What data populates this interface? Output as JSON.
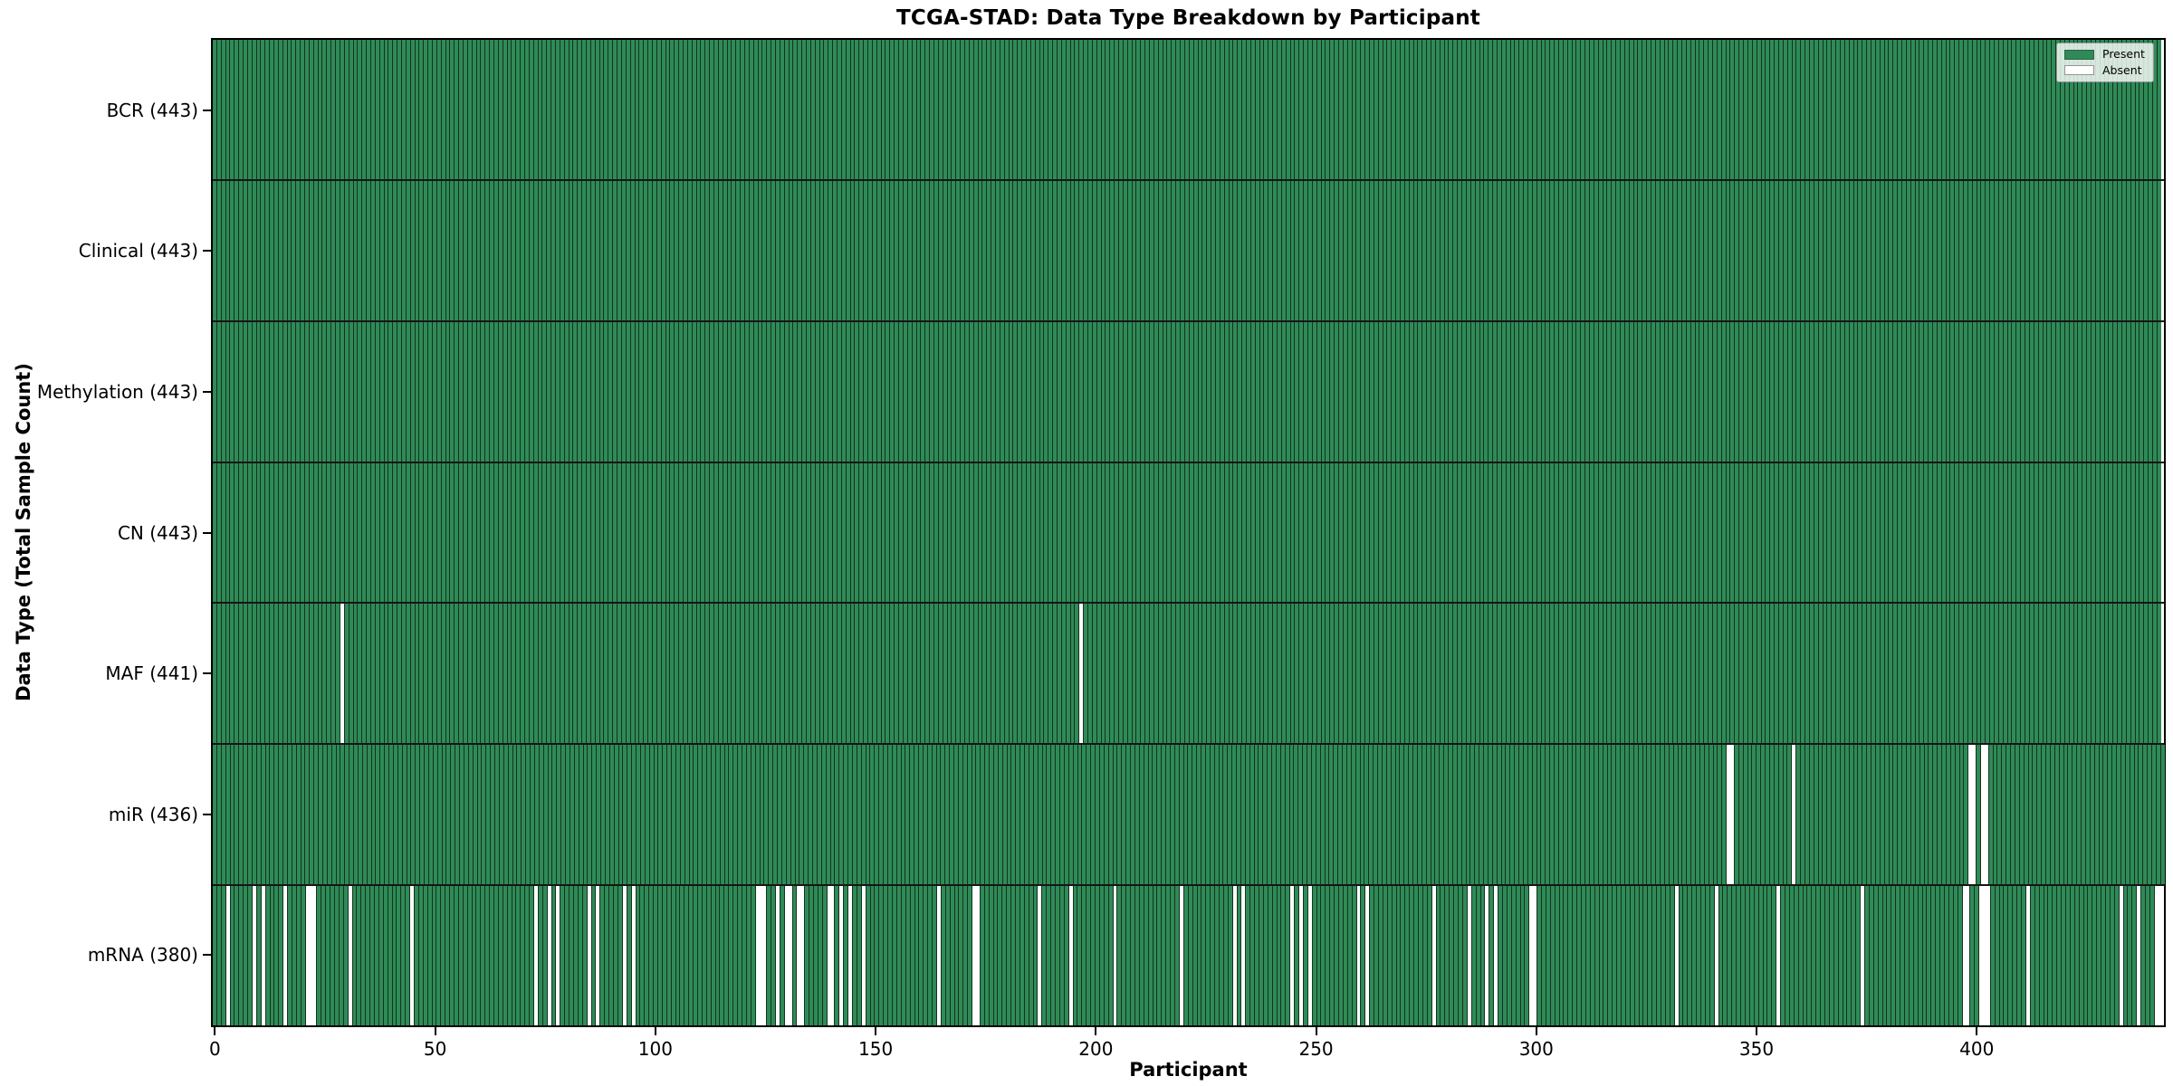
{
  "chart_data": {
    "type": "heatmap",
    "title": "TCGA-STAD: Data Type Breakdown by Participant",
    "xlabel": "Participant",
    "ylabel": "Data Type (Total Sample Count)",
    "n_participants": 443,
    "x_ticks": [
      0,
      50,
      100,
      150,
      200,
      250,
      300,
      350,
      400
    ],
    "grid": "off",
    "legend_position": "upper-right",
    "legend_entries": [
      {
        "label": "Present",
        "color": "#2e8b57"
      },
      {
        "label": "Absent",
        "color": "#ffffff"
      }
    ],
    "colors": {
      "present": "#2e8b57",
      "absent": "#ffffff",
      "bar_edge": "#16321f",
      "row_separator": "#161616",
      "spine": "#000000"
    },
    "rows": [
      {
        "label": "BCR (443)",
        "data_type": "BCR",
        "total": 443,
        "absent_participants": []
      },
      {
        "label": "Clinical (443)",
        "data_type": "Clinical",
        "total": 443,
        "absent_participants": []
      },
      {
        "label": "Methylation (443)",
        "data_type": "Methylation",
        "total": 443,
        "absent_participants": []
      },
      {
        "label": "CN (443)",
        "data_type": "CN",
        "total": 443,
        "absent_participants": []
      },
      {
        "label": "MAF (441)",
        "data_type": "MAF",
        "total": 441,
        "absent_participants": [
          29,
          197
        ]
      },
      {
        "label": "miR (436)",
        "data_type": "miR",
        "total": 436,
        "absent_participants": [
          343,
          344,
          358,
          398,
          399,
          401,
          402
        ]
      },
      {
        "label": "mRNA (380)",
        "data_type": "mRNA",
        "total": 380,
        "absent_participants": [
          3,
          9,
          11,
          16,
          21,
          22,
          23,
          31,
          45,
          73,
          76,
          78,
          85,
          87,
          93,
          95,
          123,
          124,
          125,
          128,
          130,
          131,
          133,
          134,
          140,
          141,
          143,
          145,
          148,
          165,
          173,
          174,
          188,
          195,
          205,
          220,
          232,
          234,
          245,
          247,
          249,
          260,
          262,
          277,
          285,
          289,
          291,
          299,
          300,
          332,
          341,
          355,
          374,
          397,
          398,
          401,
          402,
          403,
          412,
          433,
          437,
          441,
          442
        ]
      }
    ]
  }
}
